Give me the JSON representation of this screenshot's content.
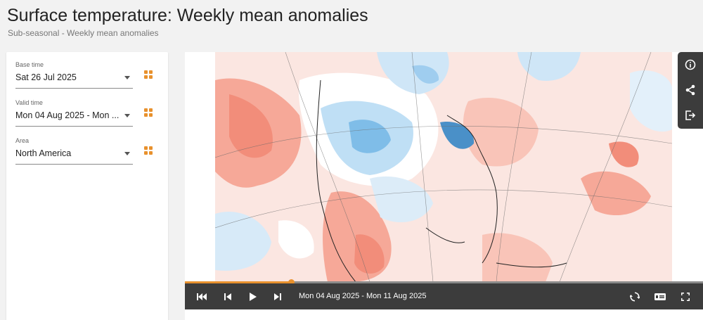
{
  "header": {
    "title": "Surface temperature: Weekly mean anomalies",
    "subtitle": "Sub-seasonal - Weekly mean anomalies"
  },
  "filters": {
    "base_time": {
      "label": "Base time",
      "value": "Sat 26 Jul 2025"
    },
    "valid_time": {
      "label": "Valid time",
      "value": "Mon 04 Aug 2025 - Mon ..."
    },
    "area": {
      "label": "Area",
      "value": "North America"
    }
  },
  "player": {
    "date_range": "Mon 04 Aug 2025 - Mon 11 Aug 2025",
    "progress": 0.205
  },
  "icons": {
    "first": "skip-first-icon",
    "previous": "skip-previous-icon",
    "play": "play-icon",
    "next": "skip-next-icon",
    "loop": "loop-icon",
    "legend": "legend-toggle-icon",
    "fullscreen": "fullscreen-icon",
    "info": "info-icon",
    "share": "share-icon",
    "export": "export-icon"
  },
  "colors": {
    "accent": "#e8912d",
    "warm_anomaly": "#f6a898",
    "cool_anomaly": "#7fbde8",
    "toolbar": "#3c3c3c"
  }
}
